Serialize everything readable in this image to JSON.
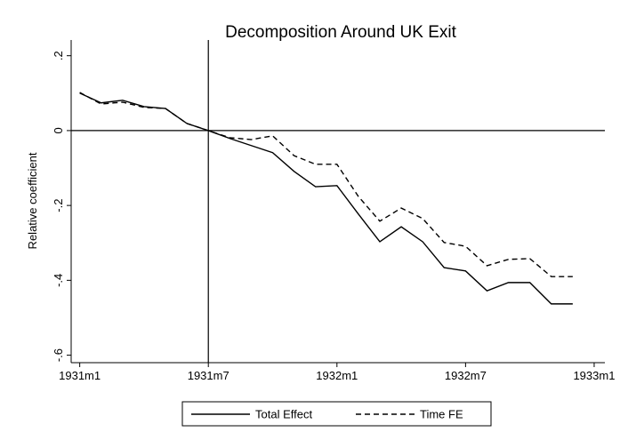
{
  "chart_data": {
    "type": "line",
    "title": "Decomposition Around UK Exit",
    "y_label": "Relative coefficient",
    "x": [
      -348,
      -347,
      -346,
      -345,
      -344,
      -343,
      -342,
      -341,
      -340,
      -339,
      -338,
      -337,
      -336,
      -335,
      -334,
      -333,
      -332,
      -331,
      -330,
      -329,
      -328,
      -327,
      -326,
      -325
    ],
    "series": [
      {
        "name": "Total Effect",
        "color": "#000000",
        "dash": "solid",
        "values": [
          0.1,
          0.074,
          0.081,
          0.064,
          0.059,
          0.019,
          0,
          -0.021,
          -0.04,
          -0.059,
          -0.109,
          -0.15,
          -0.147,
          -0.223,
          -0.297,
          -0.257,
          -0.297,
          -0.366,
          -0.375,
          -0.428,
          -0.406,
          -0.406,
          -0.463,
          -0.463
        ]
      },
      {
        "name": "Time FE",
        "color": "#000000",
        "dash": "dashed",
        "values": [
          0.102,
          0.071,
          0.076,
          0.062,
          0.059,
          0.019,
          0,
          -0.019,
          -0.024,
          -0.014,
          -0.067,
          -0.09,
          -0.09,
          -0.176,
          -0.242,
          -0.207,
          -0.235,
          -0.299,
          -0.309,
          -0.361,
          -0.344,
          -0.342,
          -0.39,
          -0.39
        ]
      }
    ],
    "xlim": [
      -348.4,
      -323.5
    ],
    "xticks": [
      {
        "value": -348,
        "label": "1931m1"
      },
      {
        "value": -342,
        "label": "1931m7"
      },
      {
        "value": -336,
        "label": "1932m1"
      },
      {
        "value": -330,
        "label": "1932m7"
      },
      {
        "value": -324,
        "label": "1933m1"
      }
    ],
    "ylim": [
      -0.62,
      0.242
    ],
    "yticks": [
      {
        "value": 0.2,
        "label": ".2"
      },
      0,
      {
        "value": -0.2,
        "label": "-.2"
      },
      {
        "value": -0.4,
        "label": "-.4"
      },
      {
        "value": -0.6,
        "label": "-.6"
      }
    ],
    "xline": -342,
    "yline": 0,
    "grid": false,
    "legend": "bottom"
  }
}
